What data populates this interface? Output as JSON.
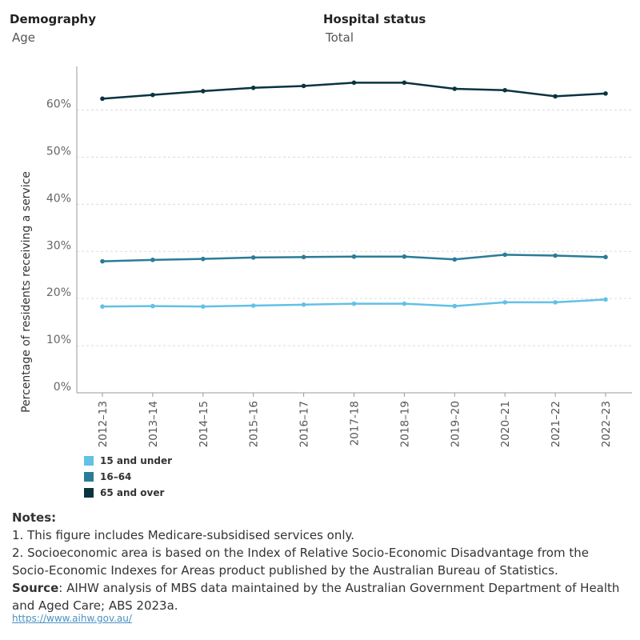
{
  "filters": {
    "demography": {
      "label": "Demography",
      "value": "Age"
    },
    "hospital_status": {
      "label": "Hospital status",
      "value": "Total"
    }
  },
  "chart_data": {
    "type": "line",
    "title": "",
    "xlabel": "",
    "ylabel": "Percentage of residents receiving a service",
    "categories": [
      "2012–13",
      "2013–14",
      "2014–15",
      "2015–16",
      "2016–17",
      "2017-18",
      "2018–19",
      "2019–20",
      "2020–21",
      "2021–22",
      "2022–23"
    ],
    "ylim": [
      0,
      70
    ],
    "yticks": [
      "0%",
      "10%",
      "20%",
      "30%",
      "40%",
      "50%",
      "60%"
    ],
    "grid": true,
    "legend_position": "bottom-left",
    "series": [
      {
        "name": "15 and under",
        "color": "#62c1e5",
        "values": [
          18.3,
          18.4,
          18.3,
          18.5,
          18.7,
          18.9,
          18.9,
          18.4,
          19.2,
          19.2,
          19.8
        ]
      },
      {
        "name": "16–64",
        "color": "#2a7c98",
        "values": [
          27.9,
          28.2,
          28.4,
          28.7,
          28.8,
          28.9,
          28.9,
          28.3,
          29.3,
          29.1,
          28.8
        ]
      },
      {
        "name": "65 and over",
        "color": "#0a3340",
        "values": [
          62.4,
          63.2,
          64.0,
          64.7,
          65.1,
          65.8,
          65.8,
          64.5,
          64.2,
          62.9,
          63.5
        ]
      }
    ]
  },
  "notes": {
    "heading": "Notes:",
    "line1": "1. This figure includes Medicare-subsidised services only.",
    "line2": "2. Socioeconomic area is based on the Index of Relative Socio-Economic Disadvantage from the Socio-Economic Indexes for Areas product published by the Australian Bureau of Statistics.",
    "source_label": "Source",
    "source_text": ": AIHW analysis of MBS data maintained by the Australian Government Department of Health and Aged Care; ABS 2023a."
  },
  "link": "https://www.aihw.gov.au/"
}
